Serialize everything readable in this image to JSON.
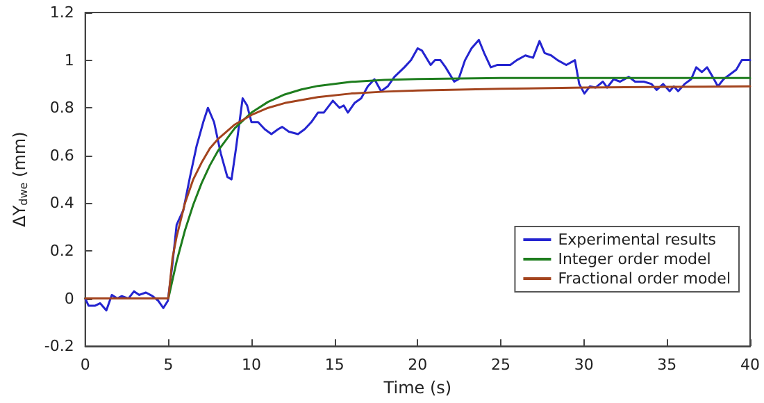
{
  "chart_data": {
    "type": "line",
    "xlabel": "Time (s)",
    "ylabel": "ΔY$_{dwe}$ (mm)",
    "xlim": [
      0,
      40
    ],
    "xticks": [
      0,
      5,
      10,
      15,
      20,
      25,
      30,
      35,
      40
    ],
    "ylim": [
      -0.2,
      1.2
    ],
    "yticks": [
      -0.2,
      0,
      0.2,
      0.4,
      0.6,
      0.8,
      1,
      1.2
    ],
    "grid": false,
    "legend": "bottom right",
    "marker": "none",
    "line_style": "solid",
    "series": [
      {
        "name": "Experimental results",
        "color": "#2424d0",
        "x": [
          0,
          0.2,
          0.6,
          0.9,
          1.27,
          1.6,
          1.93,
          2.2,
          2.6,
          2.93,
          3.25,
          3.65,
          4.05,
          4.4,
          4.7,
          4.97,
          5.24,
          5.5,
          5.9,
          6.3,
          6.7,
          7.1,
          7.38,
          7.75,
          8.15,
          8.55,
          8.8,
          9.07,
          9.47,
          9.74,
          10,
          10.4,
          10.8,
          11.2,
          11.6,
          11.85,
          12.25,
          12.8,
          13.2,
          13.6,
          14,
          14.35,
          14.9,
          15.3,
          15.55,
          15.8,
          16.2,
          16.6,
          17,
          17.4,
          17.8,
          18.2,
          18.6,
          19.2,
          19.6,
          20,
          20.26,
          20.78,
          21.04,
          21.37,
          21.68,
          22.2,
          22.46,
          22.85,
          23.24,
          23.68,
          24,
          24.4,
          24.8,
          25.2,
          25.57,
          25.96,
          26.48,
          26.94,
          27.33,
          27.64,
          28.03,
          28.42,
          28.94,
          29.46,
          29.72,
          30.03,
          30.36,
          30.7,
          31.14,
          31.4,
          31.79,
          32.18,
          32.7,
          33.08,
          33.6,
          34.07,
          34.38,
          34.77,
          35.16,
          35.41,
          35.67,
          36.06,
          36.45,
          36.76,
          37.1,
          37.41,
          37.75,
          38.06,
          38.4,
          38.78,
          39.17,
          39.5,
          40
        ],
        "values": [
          0,
          -0.03,
          -0.03,
          -0.02,
          -0.05,
          0.015,
          0,
          0.01,
          0,
          0.03,
          0.015,
          0.025,
          0.01,
          -0.01,
          -0.04,
          -0.01,
          0.14,
          0.31,
          0.37,
          0.51,
          0.64,
          0.74,
          0.8,
          0.74,
          0.61,
          0.51,
          0.5,
          0.63,
          0.84,
          0.81,
          0.74,
          0.74,
          0.71,
          0.69,
          0.71,
          0.72,
          0.7,
          0.69,
          0.71,
          0.74,
          0.78,
          0.78,
          0.83,
          0.8,
          0.81,
          0.78,
          0.82,
          0.84,
          0.89,
          0.92,
          0.87,
          0.89,
          0.93,
          0.97,
          1,
          1.05,
          1.04,
          0.98,
          1,
          1,
          0.97,
          0.91,
          0.92,
          1,
          1.05,
          1.085,
          1.03,
          0.97,
          0.98,
          0.98,
          0.98,
          1,
          1.02,
          1.01,
          1.08,
          1.03,
          1.02,
          1,
          0.98,
          1,
          0.9,
          0.86,
          0.89,
          0.885,
          0.91,
          0.885,
          0.92,
          0.91,
          0.93,
          0.91,
          0.91,
          0.9,
          0.875,
          0.9,
          0.87,
          0.89,
          0.87,
          0.9,
          0.92,
          0.97,
          0.95,
          0.97,
          0.93,
          0.89,
          0.92,
          0.94,
          0.96,
          1,
          1
        ]
      },
      {
        "name": "Integer order model",
        "color": "#1e7d1e",
        "x": [
          0,
          5,
          5.5,
          6,
          6.5,
          7,
          7.5,
          8,
          9,
          10,
          11,
          12,
          13,
          14,
          16,
          18,
          20,
          25,
          30,
          35,
          40
        ],
        "values": [
          0,
          0,
          0.156,
          0.286,
          0.394,
          0.484,
          0.559,
          0.621,
          0.715,
          0.78,
          0.825,
          0.856,
          0.877,
          0.892,
          0.909,
          0.917,
          0.921,
          0.925,
          0.925,
          0.925,
          0.925
        ]
      },
      {
        "name": "Fractional order model",
        "color": "#a3441e",
        "x": [
          0,
          5,
          5.25,
          5.5,
          6,
          6.5,
          7,
          7.5,
          8,
          9,
          10,
          11,
          12,
          14,
          16,
          18,
          20,
          25,
          30,
          35,
          40
        ],
        "values": [
          0,
          0,
          0.17,
          0.26,
          0.4,
          0.5,
          0.57,
          0.63,
          0.67,
          0.73,
          0.77,
          0.8,
          0.82,
          0.845,
          0.86,
          0.868,
          0.873,
          0.88,
          0.885,
          0.888,
          0.89
        ]
      }
    ]
  }
}
